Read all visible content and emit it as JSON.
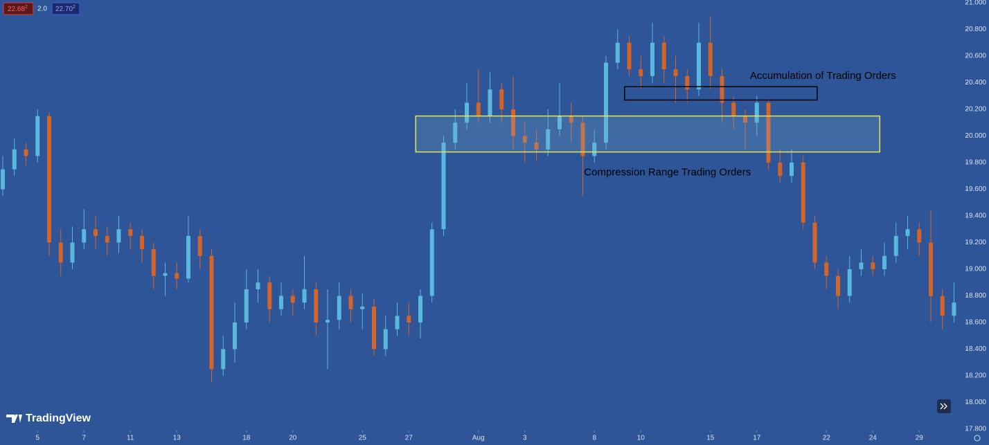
{
  "header": {
    "bid": "22.68",
    "bid_sup": "2",
    "spread": "2.0",
    "ask": "22.70",
    "ask_sup": "2"
  },
  "logo": "TradingView",
  "chart_data": {
    "type": "candlestick",
    "up_color": "#5ab8dc",
    "down_color": "#d4652a",
    "open": [
      19.6,
      19.75,
      19.9,
      19.85,
      20.15,
      19.2,
      19.05,
      19.2,
      19.3,
      19.25,
      19.2,
      19.3,
      19.25,
      19.15,
      18.95,
      18.97,
      18.93,
      19.25,
      19.1,
      18.25,
      18.4,
      18.6,
      18.85,
      18.9,
      18.7,
      18.8,
      18.75,
      18.85,
      18.6,
      18.62,
      18.8,
      18.7,
      18.72,
      18.4,
      18.55,
      18.65,
      18.6,
      18.8,
      19.3,
      19.95,
      20.1,
      20.25,
      20.15,
      20.35,
      20.2,
      20.0,
      19.95,
      19.9,
      20.05,
      20.15,
      20.1,
      19.85,
      19.95,
      20.55,
      20.7,
      20.5,
      20.45,
      20.7,
      20.5,
      20.45,
      20.35,
      20.7,
      20.45,
      20.25,
      20.15,
      20.1,
      20.25,
      19.8,
      19.7,
      19.8,
      19.35,
      19.05,
      18.95,
      18.8,
      19.0,
      19.05,
      19.0,
      19.1,
      19.25,
      19.3,
      19.2,
      18.8,
      18.65
    ],
    "high": [
      19.85,
      19.98,
      19.95,
      20.2,
      20.18,
      19.3,
      19.32,
      19.45,
      19.4,
      19.32,
      19.4,
      19.35,
      19.3,
      19.2,
      19.05,
      19.05,
      19.4,
      19.3,
      19.15,
      18.5,
      18.75,
      19.0,
      19.0,
      18.95,
      18.9,
      18.85,
      19.1,
      18.9,
      18.85,
      18.9,
      18.85,
      18.82,
      18.78,
      18.65,
      18.75,
      18.75,
      18.85,
      19.35,
      20.0,
      20.2,
      20.4,
      20.5,
      20.48,
      20.4,
      20.45,
      20.1,
      20.05,
      20.2,
      20.4,
      20.25,
      20.15,
      20.05,
      20.6,
      20.8,
      20.75,
      20.6,
      20.85,
      20.75,
      20.6,
      20.5,
      20.85,
      20.9,
      20.5,
      20.3,
      20.2,
      20.3,
      20.28,
      19.9,
      19.9,
      19.85,
      19.4,
      19.1,
      19.0,
      19.1,
      19.15,
      19.1,
      19.2,
      19.35,
      19.4,
      19.35,
      19.45,
      18.85,
      18.9
    ],
    "low": [
      19.55,
      19.7,
      19.78,
      19.8,
      19.1,
      18.95,
      19.0,
      19.15,
      19.15,
      19.1,
      19.12,
      19.15,
      19.05,
      18.85,
      18.8,
      18.85,
      18.9,
      19.0,
      18.15,
      18.2,
      18.3,
      18.55,
      18.75,
      18.6,
      18.65,
      18.65,
      18.7,
      18.5,
      18.25,
      18.55,
      18.6,
      18.55,
      18.35,
      18.35,
      18.5,
      18.5,
      18.48,
      18.75,
      19.25,
      19.9,
      20.05,
      20.1,
      20.1,
      20.1,
      19.9,
      19.8,
      19.82,
      19.85,
      20.0,
      19.95,
      19.55,
      19.8,
      19.9,
      20.5,
      20.45,
      20.35,
      20.4,
      20.4,
      20.25,
      20.25,
      20.3,
      20.35,
      20.1,
      20.05,
      19.9,
      20.0,
      19.75,
      19.65,
      19.65,
      19.3,
      19.0,
      18.85,
      18.7,
      18.75,
      18.95,
      18.95,
      18.95,
      19.05,
      19.15,
      19.1,
      18.6,
      18.55,
      18.6
    ],
    "close": [
      19.75,
      19.9,
      19.85,
      20.15,
      19.2,
      19.05,
      19.2,
      19.3,
      19.25,
      19.2,
      19.3,
      19.25,
      19.15,
      18.95,
      18.97,
      18.93,
      19.25,
      19.1,
      18.25,
      18.4,
      18.6,
      18.85,
      18.9,
      18.7,
      18.8,
      18.75,
      18.85,
      18.6,
      18.62,
      18.8,
      18.7,
      18.72,
      18.4,
      18.55,
      18.65,
      18.6,
      18.8,
      19.3,
      19.95,
      20.1,
      20.25,
      20.15,
      20.35,
      20.2,
      20.0,
      19.95,
      19.9,
      20.05,
      20.15,
      20.1,
      19.85,
      19.95,
      20.55,
      20.7,
      20.5,
      20.45,
      20.7,
      20.5,
      20.45,
      20.35,
      20.7,
      20.45,
      20.25,
      20.15,
      20.1,
      20.25,
      19.8,
      19.7,
      19.8,
      19.35,
      19.05,
      18.95,
      18.8,
      19.0,
      19.05,
      19.0,
      19.1,
      19.25,
      19.3,
      19.2,
      18.8,
      18.65,
      18.75
    ],
    "ylim": [
      17.8,
      21.0
    ],
    "yticks": [
      {
        "value": 17.8,
        "label": "17.800"
      },
      {
        "value": 18.0,
        "label": "18.000"
      },
      {
        "value": 18.2,
        "label": "18.200"
      },
      {
        "value": 18.4,
        "label": "18.400"
      },
      {
        "value": 18.6,
        "label": "18.600"
      },
      {
        "value": 18.8,
        "label": "18.800"
      },
      {
        "value": 19.0,
        "label": "19.000"
      },
      {
        "value": 19.2,
        "label": "19.200"
      },
      {
        "value": 19.4,
        "label": "19.400"
      },
      {
        "value": 19.6,
        "label": "19.600"
      },
      {
        "value": 19.8,
        "label": "19.800"
      },
      {
        "value": 20.0,
        "label": "20.000"
      },
      {
        "value": 20.2,
        "label": "20.200"
      },
      {
        "value": 20.4,
        "label": "20.400"
      },
      {
        "value": 20.6,
        "label": "20.600"
      },
      {
        "value": 20.8,
        "label": "20.800"
      },
      {
        "value": 21.0,
        "label": "21.000"
      }
    ],
    "xticks": [
      {
        "value": 3,
        "label": "5"
      },
      {
        "value": 7,
        "label": "7"
      },
      {
        "value": 11,
        "label": "11"
      },
      {
        "value": 15,
        "label": "13"
      },
      {
        "value": 21,
        "label": "18"
      },
      {
        "value": 25,
        "label": "20"
      },
      {
        "value": 31,
        "label": "25"
      },
      {
        "value": 35,
        "label": "27"
      },
      {
        "value": 41,
        "label": "Aug"
      },
      {
        "value": 45,
        "label": "3"
      },
      {
        "value": 51,
        "label": "8"
      },
      {
        "value": 55,
        "label": "10"
      },
      {
        "value": 61,
        "label": "15"
      },
      {
        "value": 65,
        "label": "17"
      },
      {
        "value": 71,
        "label": "22"
      },
      {
        "value": 75,
        "label": "24"
      },
      {
        "value": 79,
        "label": "29"
      }
    ],
    "zones": [
      {
        "label": "Compression Range Trading Orders",
        "top": 20.15,
        "bottom": 19.88,
        "start": 35.6,
        "end": 75.6,
        "color": "#e8e84a"
      },
      {
        "label": "Accumulation of Trading Orders",
        "top": 20.37,
        "bottom": 20.27,
        "start": 53.6,
        "end": 70.2,
        "color": "#000000"
      }
    ]
  }
}
